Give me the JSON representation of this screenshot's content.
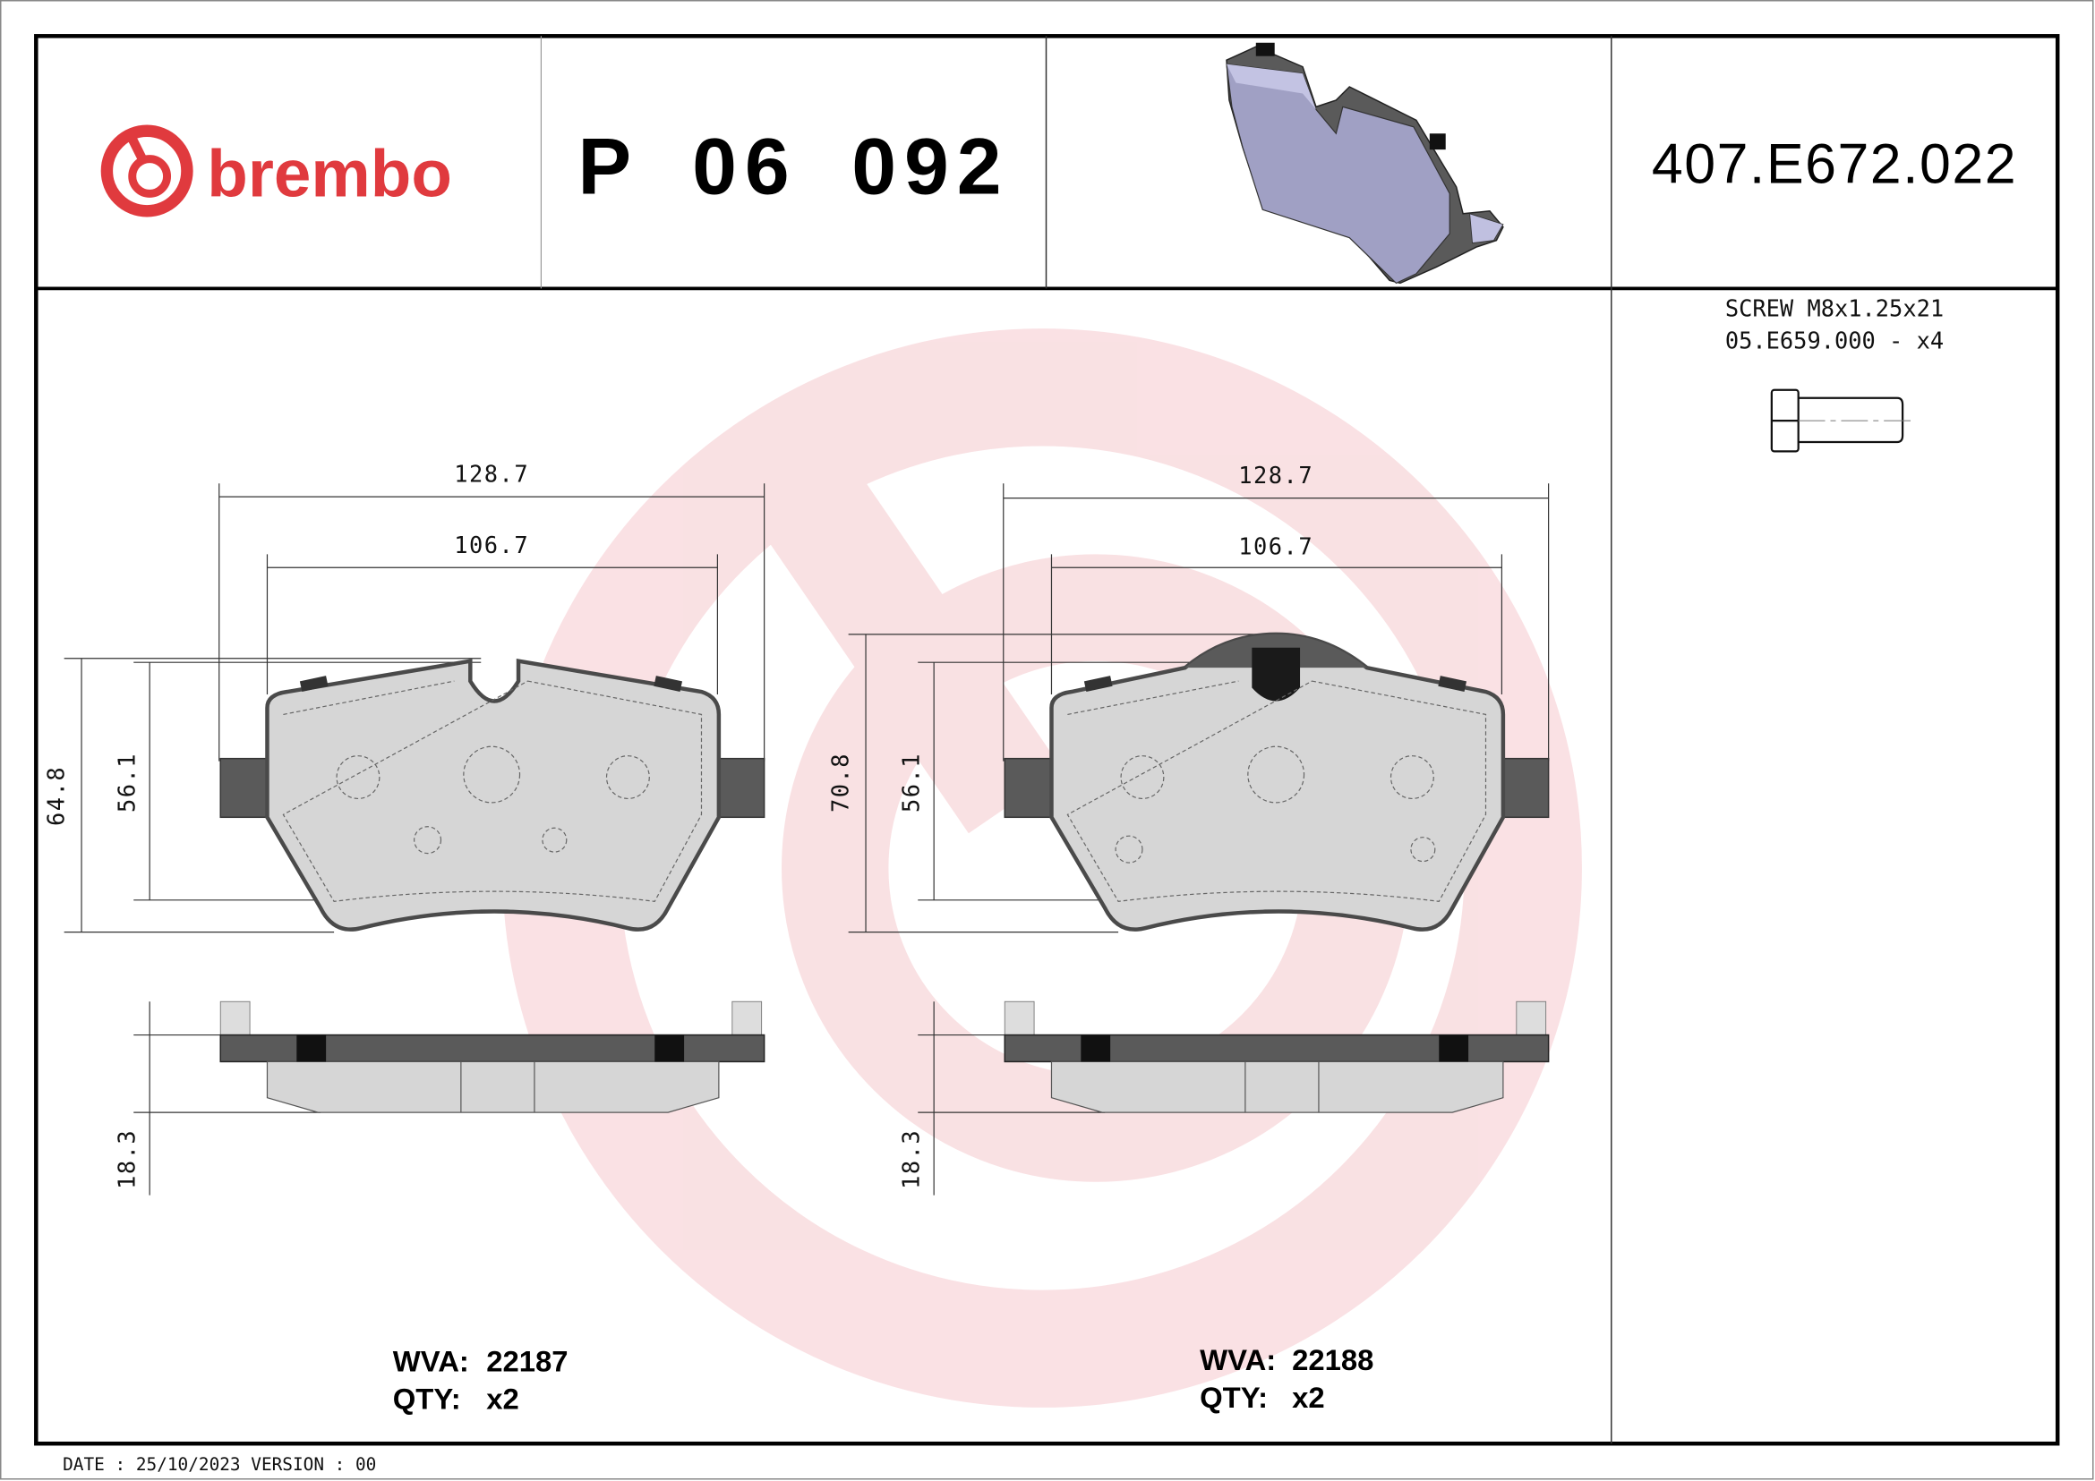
{
  "brand": {
    "logo_text": "brembo",
    "color": "#e03a3e",
    "watermark_color": "#f9dcdf"
  },
  "header": {
    "part_number": "P 06 092",
    "reference_code": "407.E672.022"
  },
  "accessory": {
    "line1": "SCREW M8x1.25x21",
    "line2": "05.E659.000 - x4",
    "icon": "screw-icon"
  },
  "pads": [
    {
      "dims": {
        "width_outer": "128.7",
        "width_inner": "106.7",
        "height_outer": "64.8",
        "height_inner": "56.1",
        "thickness": "18.3"
      },
      "wva_label": "WVA:",
      "wva_value": "22187",
      "qty_label": "QTY:",
      "qty_value": "x2"
    },
    {
      "dims": {
        "width_outer": "128.7",
        "width_inner": "106.7",
        "height_outer": "70.8",
        "height_inner": "56.1",
        "thickness": "18.3"
      },
      "wva_label": "WVA:",
      "wva_value": "22188",
      "qty_label": "QTY:",
      "qty_value": "x2"
    }
  ],
  "footer": {
    "date_version": "DATE : 25/10/2023 VERSION : 00"
  }
}
